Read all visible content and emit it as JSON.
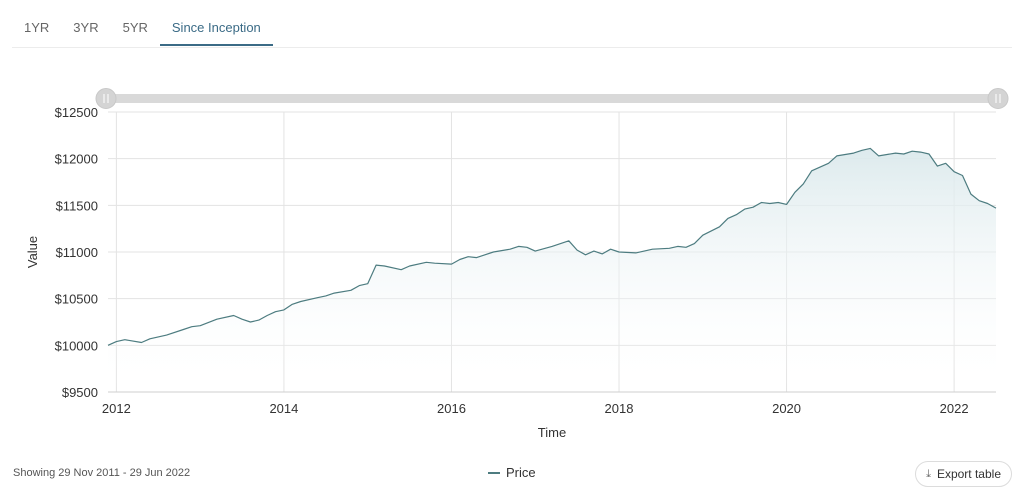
{
  "tabs": [
    {
      "label": "1YR",
      "active": false
    },
    {
      "label": "3YR",
      "active": false
    },
    {
      "label": "5YR",
      "active": false
    },
    {
      "label": "Since Inception",
      "active": true
    }
  ],
  "footer": {
    "range_text": "Showing 29 Nov 2011 - 29 Jun 2022",
    "export_label": "Export table",
    "export_icon": "download-icon"
  },
  "colors": {
    "line": "#4d7c80",
    "fill": "#e8f1f3",
    "grid": "#e3e3e3",
    "navigator": "#d9d9d9",
    "active_tab": "#3b6b86"
  },
  "chart_data": {
    "type": "area",
    "xlabel": "Time",
    "ylabel": "Value",
    "ylim": [
      9500,
      12500
    ],
    "yticks": [
      9500,
      10000,
      10500,
      11000,
      11500,
      12000,
      12500
    ],
    "ytick_labels": [
      "$9500",
      "$10000",
      "$10500",
      "$11000",
      "$11500",
      "$12000",
      "$12500"
    ],
    "xlim": [
      2011.9,
      2022.5
    ],
    "xticks": [
      2012,
      2014,
      2016,
      2018,
      2020,
      2022
    ],
    "xtick_labels": [
      "2012",
      "2014",
      "2016",
      "2018",
      "2020",
      "2022"
    ],
    "grid": true,
    "legend_position": "bottom-center",
    "series": [
      {
        "name": "Price",
        "x": [
          2011.9,
          2012.0,
          2012.1,
          2012.3,
          2012.4,
          2012.6,
          2012.8,
          2012.9,
          2013.0,
          2013.2,
          2013.4,
          2013.5,
          2013.6,
          2013.7,
          2013.8,
          2013.9,
          2014.0,
          2014.1,
          2014.2,
          2014.4,
          2014.5,
          2014.6,
          2014.8,
          2014.9,
          2015.0,
          2015.1,
          2015.2,
          2015.4,
          2015.5,
          2015.7,
          2015.8,
          2016.0,
          2016.1,
          2016.2,
          2016.3,
          2016.5,
          2016.7,
          2016.8,
          2016.9,
          2017.0,
          2017.2,
          2017.4,
          2017.5,
          2017.6,
          2017.7,
          2017.8,
          2017.9,
          2018.0,
          2018.2,
          2018.4,
          2018.6,
          2018.7,
          2018.8,
          2018.9,
          2019.0,
          2019.2,
          2019.3,
          2019.4,
          2019.5,
          2019.6,
          2019.7,
          2019.8,
          2019.9,
          2020.0,
          2020.1,
          2020.2,
          2020.3,
          2020.5,
          2020.6,
          2020.8,
          2020.9,
          2021.0,
          2021.1,
          2021.3,
          2021.4,
          2021.5,
          2021.6,
          2021.7,
          2021.8,
          2021.9,
          2022.0,
          2022.1,
          2022.2,
          2022.3,
          2022.4,
          2022.5
        ],
        "values": [
          10000,
          10040,
          10060,
          10030,
          10070,
          10110,
          10170,
          10200,
          10210,
          10280,
          10320,
          10280,
          10250,
          10270,
          10320,
          10360,
          10380,
          10440,
          10470,
          10510,
          10530,
          10560,
          10590,
          10640,
          10660,
          10860,
          10850,
          10810,
          10850,
          10890,
          10880,
          10870,
          10920,
          10950,
          10940,
          11000,
          11030,
          11060,
          11050,
          11010,
          11060,
          11120,
          11020,
          10970,
          11010,
          10980,
          11030,
          11000,
          10990,
          11030,
          11040,
          11060,
          11050,
          11090,
          11180,
          11270,
          11360,
          11400,
          11460,
          11480,
          11530,
          11520,
          11530,
          11510,
          11640,
          11730,
          11870,
          11950,
          12030,
          12060,
          12090,
          12110,
          12030,
          12060,
          12050,
          12080,
          12070,
          12050,
          11920,
          11950,
          11860,
          11820,
          11620,
          11550,
          11520,
          11470
        ]
      }
    ]
  }
}
